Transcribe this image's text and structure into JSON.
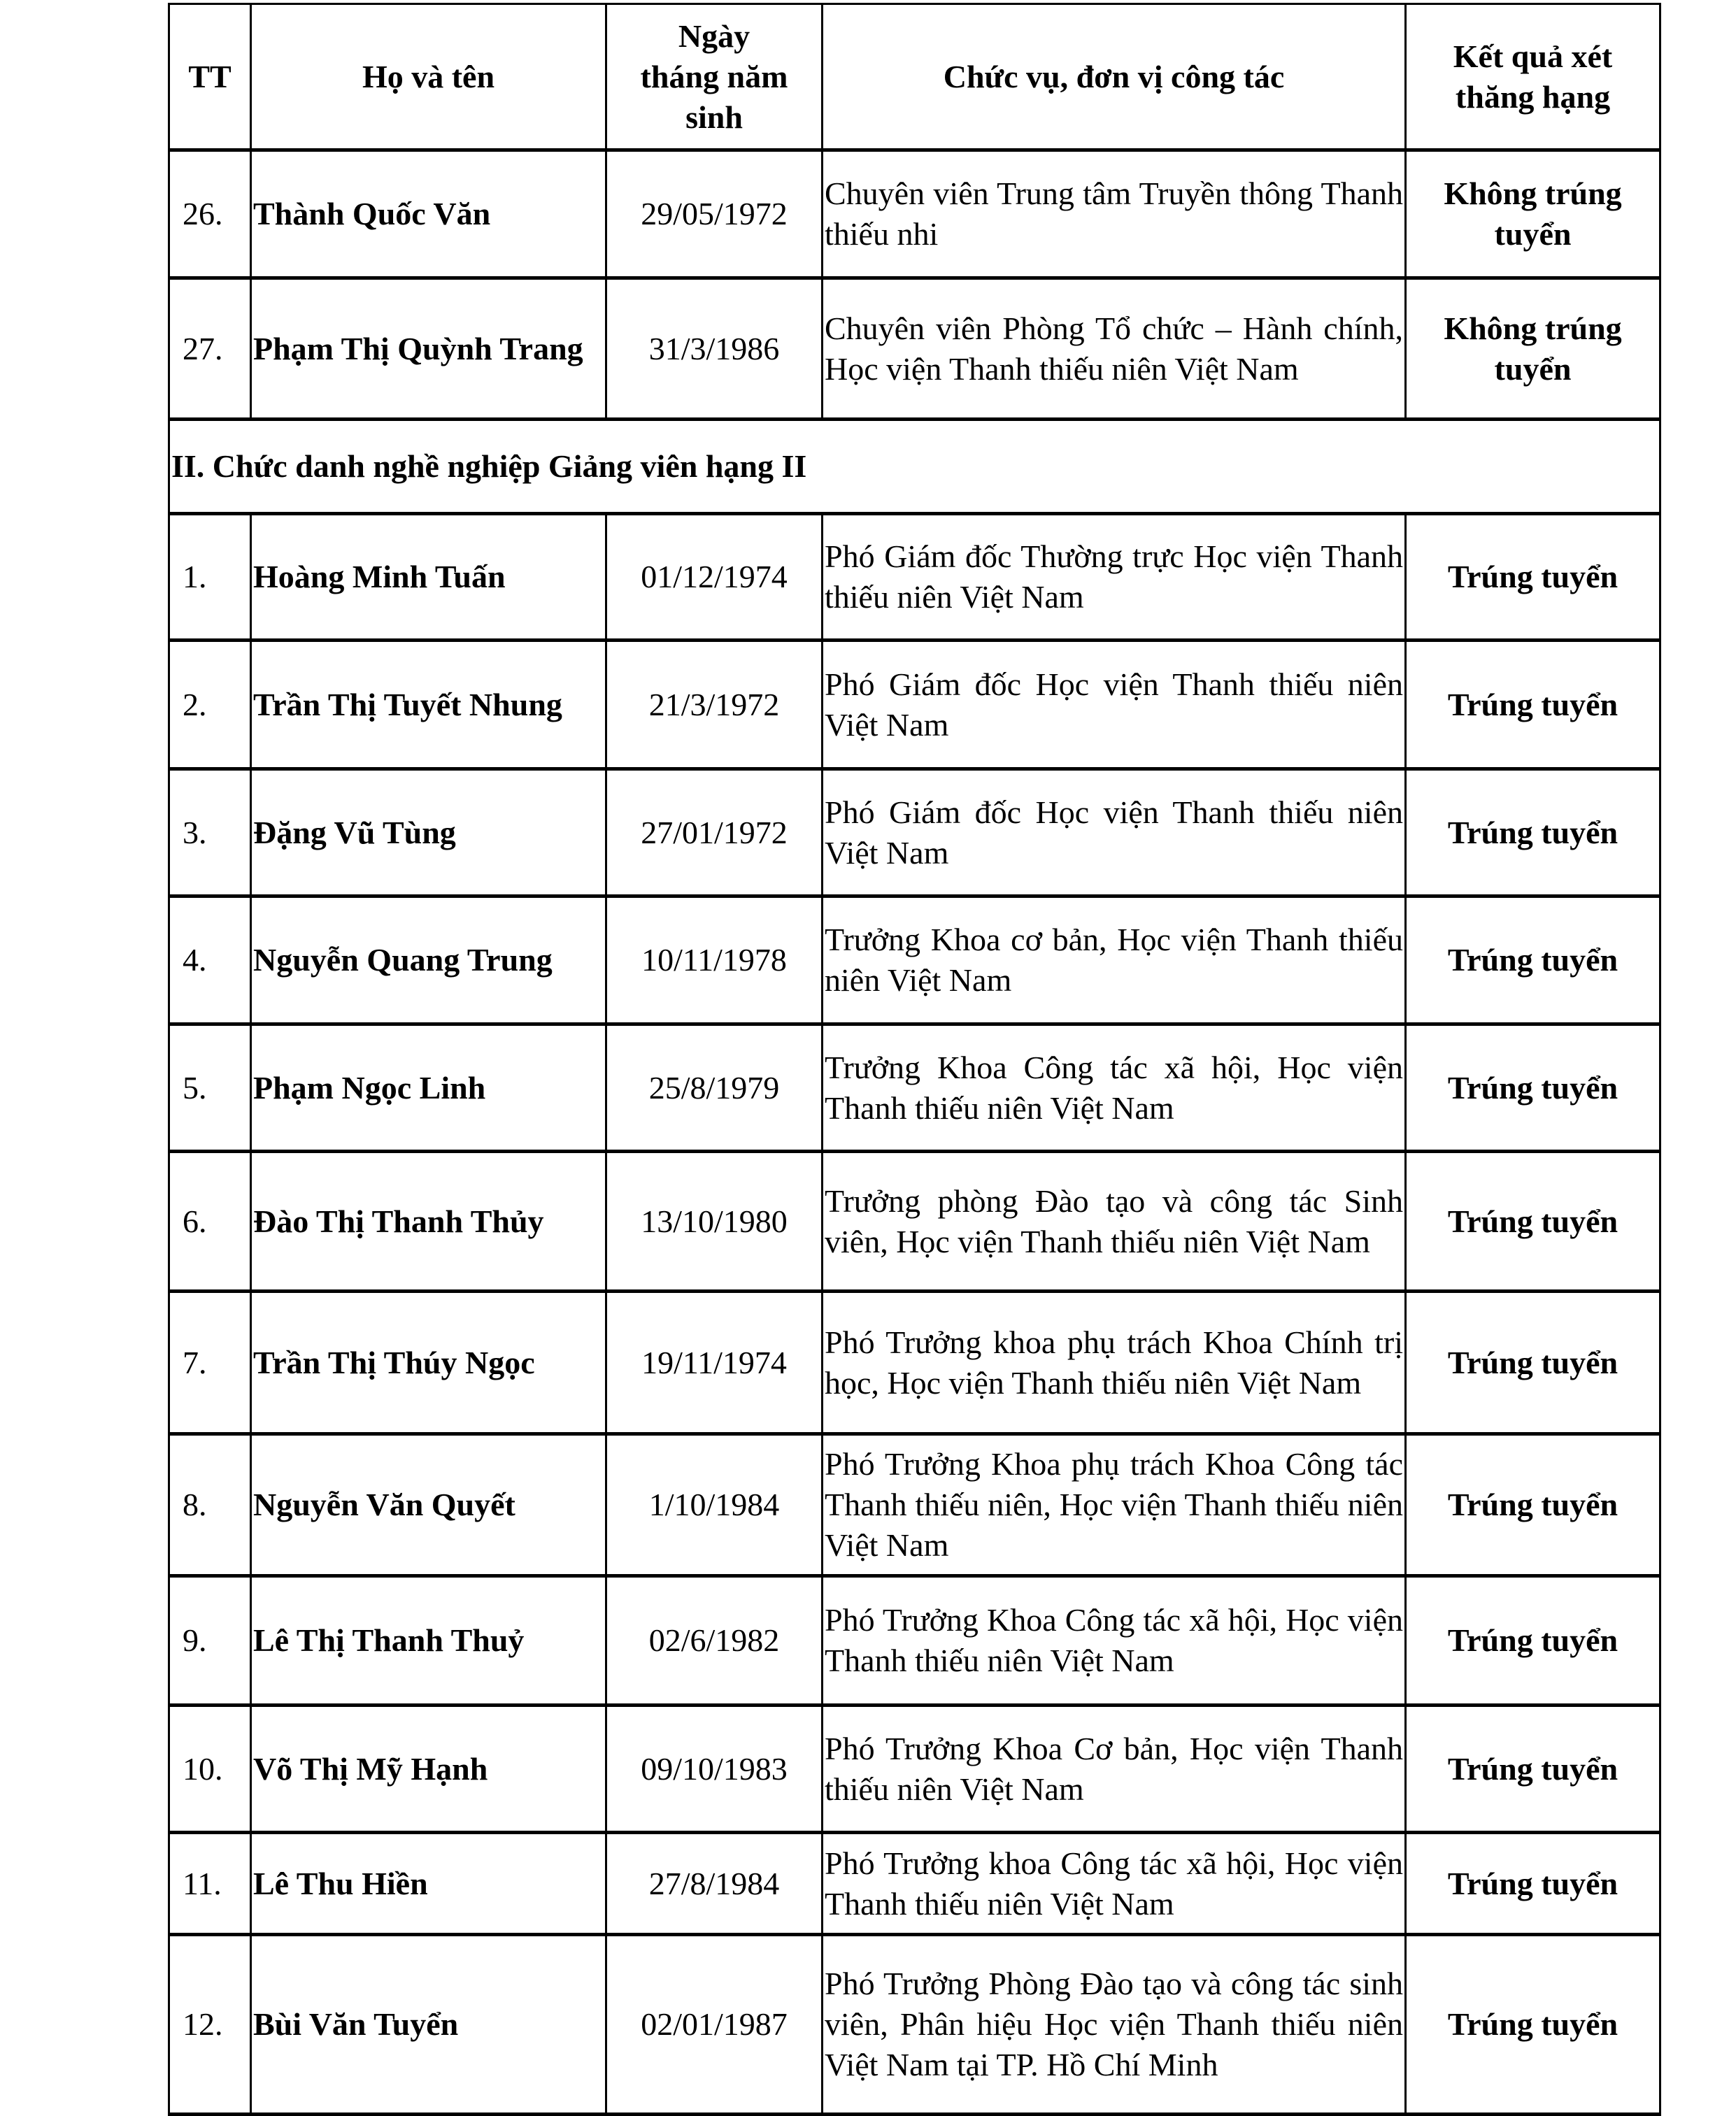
{
  "headers": {
    "tt": "TT",
    "name": "Họ và tên",
    "dob": "Ngày tháng năm sinh",
    "position": "Chức vụ, đơn vị công tác",
    "result": "Kết quả xét thăng hạng"
  },
  "rows_before": [
    {
      "tt": "26.",
      "name": "Thành Quốc Văn",
      "dob": "29/05/1972",
      "position": "Chuyên viên Trung tâm Truyền thông Thanh thiếu nhi",
      "result": "Không trúng tuyển"
    },
    {
      "tt": "27.",
      "name": "Phạm Thị Quỳnh Trang",
      "dob": "31/3/1986",
      "position": "Chuyên viên Phòng Tổ chức – Hành chính, Học viện Thanh thiếu niên Việt Nam",
      "result": "Không trúng tuyển"
    }
  ],
  "section_title": "II. Chức danh nghề nghiệp Giảng viên hạng II",
  "rows": [
    {
      "tt": "1.",
      "name": "Hoàng Minh Tuấn",
      "dob": "01/12/1974",
      "position": "Phó Giám đốc Thường trực Học viện Thanh thiếu niên Việt Nam",
      "result": "Trúng tuyển"
    },
    {
      "tt": "2.",
      "name": "Trần Thị Tuyết Nhung",
      "dob": "21/3/1972",
      "position": "Phó Giám đốc Học viện Thanh thiếu niên Việt Nam",
      "result": "Trúng tuyển"
    },
    {
      "tt": "3.",
      "name": "Đặng Vũ Tùng",
      "dob": "27/01/1972",
      "position": "Phó Giám đốc Học viện Thanh thiếu niên Việt Nam",
      "result": "Trúng tuyển"
    },
    {
      "tt": "4.",
      "name": "Nguyễn Quang Trung",
      "dob": "10/11/1978",
      "position": "Trưởng Khoa cơ bản, Học viện Thanh thiếu niên Việt Nam",
      "result": "Trúng tuyển"
    },
    {
      "tt": "5.",
      "name": "Phạm Ngọc Linh",
      "dob": "25/8/1979",
      "position": "Trưởng Khoa Công tác xã hội, Học viện Thanh thiếu niên Việt Nam",
      "result": "Trúng tuyển"
    },
    {
      "tt": "6.",
      "name": "Đào Thị Thanh Thủy",
      "dob": "13/10/1980",
      "position": "Trưởng phòng Đào tạo và công tác Sinh viên, Học viện Thanh thiếu niên Việt Nam",
      "result": "Trúng tuyển"
    },
    {
      "tt": "7.",
      "name": "Trần Thị Thúy Ngọc",
      "dob": "19/11/1974",
      "position": "Phó Trưởng khoa phụ trách Khoa Chính trị học, Học viện Thanh thiếu niên Việt Nam",
      "result": "Trúng tuyển"
    },
    {
      "tt": "8.",
      "name": "Nguyễn Văn Quyết",
      "dob": "1/10/1984",
      "position": "Phó Trưởng Khoa phụ trách Khoa Công tác Thanh thiếu niên, Học viện Thanh thiếu niên Việt Nam",
      "result": "Trúng tuyển"
    },
    {
      "tt": "9.",
      "name": "Lê Thị Thanh Thuỷ",
      "dob": "02/6/1982",
      "position": "Phó Trưởng Khoa Công tác xã hội, Học viện Thanh thiếu niên Việt Nam",
      "result": "Trúng tuyển"
    },
    {
      "tt": "10.",
      "name": "Võ Thị Mỹ Hạnh",
      "dob": "09/10/1983",
      "position": "Phó Trưởng Khoa Cơ bản, Học viện Thanh thiếu niên Việt Nam",
      "result": "Trúng tuyển"
    },
    {
      "tt": "11.",
      "name": "Lê Thu Hiền",
      "dob": "27/8/1984",
      "position": "Phó Trưởng khoa Công tác xã hội, Học viện Thanh thiếu niên Việt Nam",
      "result": "Trúng tuyển"
    },
    {
      "tt": "12.",
      "name": "Bùi Văn Tuyển",
      "dob": "02/01/1987",
      "position": "Phó Trưởng Phòng Đào tạo và công tác sinh viên, Phân hiệu Học viện Thanh thiếu niên Việt Nam tại TP. Hồ Chí Minh",
      "result": "Trúng tuyển"
    }
  ]
}
